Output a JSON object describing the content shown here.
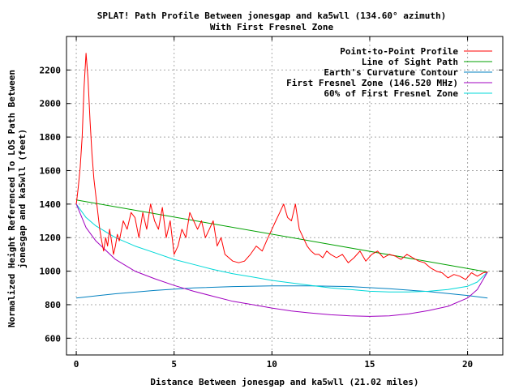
{
  "chart_data": {
    "type": "line",
    "title": "SPLAT! Path Profile Between jonesgap and ka5wll (134.60° azimuth)",
    "subtitle": "With First Fresnel Zone",
    "xlabel": "Distance Between jonesgap and ka5wll (21.02 miles)",
    "ylabel_lines": [
      "Normalized Height Referenced To LOS Path Between",
      "jonesgap and ka5wll (feet)"
    ],
    "xlim": [
      -0.5,
      21.8
    ],
    "ylim": [
      500,
      2400
    ],
    "xticks": [
      0,
      5,
      10,
      15,
      20
    ],
    "yticks": [
      600,
      800,
      1000,
      1200,
      1400,
      1600,
      1800,
      2000,
      2200
    ],
    "grid": true,
    "legend_position": "top-right",
    "series": [
      {
        "name": "Point-to-Point Profile",
        "color": "#ff0000",
        "x": [
          0,
          0.1,
          0.2,
          0.3,
          0.4,
          0.5,
          0.6,
          0.7,
          0.8,
          0.9,
          1.0,
          1.1,
          1.2,
          1.3,
          1.4,
          1.5,
          1.6,
          1.7,
          1.8,
          1.9,
          2.0,
          2.1,
          2.2,
          2.4,
          2.6,
          2.8,
          3.0,
          3.2,
          3.4,
          3.6,
          3.8,
          4.0,
          4.2,
          4.4,
          4.6,
          4.8,
          5.0,
          5.2,
          5.4,
          5.6,
          5.8,
          6.0,
          6.2,
          6.4,
          6.6,
          6.8,
          7.0,
          7.2,
          7.4,
          7.6,
          7.8,
          8.0,
          8.3,
          8.6,
          8.9,
          9.2,
          9.5,
          9.8,
          10.0,
          10.2,
          10.4,
          10.6,
          10.8,
          11.0,
          11.2,
          11.4,
          11.6,
          11.8,
          12.0,
          12.2,
          12.4,
          12.6,
          12.8,
          13.0,
          13.3,
          13.6,
          13.9,
          14.2,
          14.5,
          14.8,
          15.1,
          15.4,
          15.7,
          16.0,
          16.3,
          16.6,
          16.9,
          17.2,
          17.5,
          17.8,
          18.1,
          18.4,
          18.7,
          19.0,
          19.3,
          19.6,
          19.9,
          20.2,
          20.5,
          20.8,
          21.02
        ],
        "values": [
          1400,
          1500,
          1620,
          1800,
          2100,
          2300,
          2150,
          1900,
          1700,
          1550,
          1450,
          1350,
          1250,
          1180,
          1120,
          1200,
          1150,
          1250,
          1180,
          1100,
          1150,
          1220,
          1180,
          1300,
          1250,
          1350,
          1320,
          1200,
          1350,
          1250,
          1400,
          1300,
          1250,
          1380,
          1200,
          1300,
          1100,
          1150,
          1250,
          1200,
          1350,
          1300,
          1250,
          1300,
          1200,
          1250,
          1300,
          1150,
          1200,
          1100,
          1080,
          1060,
          1050,
          1060,
          1100,
          1150,
          1120,
          1200,
          1250,
          1300,
          1350,
          1400,
          1320,
          1300,
          1400,
          1250,
          1200,
          1150,
          1120,
          1100,
          1100,
          1080,
          1120,
          1100,
          1080,
          1100,
          1050,
          1080,
          1120,
          1060,
          1100,
          1120,
          1080,
          1100,
          1090,
          1070,
          1100,
          1080,
          1060,
          1050,
          1020,
          1000,
          990,
          960,
          980,
          970,
          950,
          990,
          970,
          990,
          995
        ]
      },
      {
        "name": "Line of Sight Path",
        "color": "#00a000",
        "x": [
          0,
          21.02
        ],
        "values": [
          1425,
          995
        ]
      },
      {
        "name": "Earth's Curvature Contour",
        "color": "#0080c0",
        "x": [
          0,
          2,
          4,
          6,
          8,
          10,
          12,
          14,
          16,
          18,
          20,
          21.02
        ],
        "values": [
          840,
          865,
          885,
          900,
          908,
          912,
          912,
          908,
          895,
          878,
          855,
          840
        ]
      },
      {
        "name": "First Fresnel Zone (146.520 MHz)",
        "color": "#a000c0",
        "x": [
          0,
          0.5,
          1,
          2,
          3,
          4,
          5,
          6,
          7,
          8,
          9,
          10,
          11,
          12,
          13,
          14,
          15,
          16,
          17,
          18,
          19,
          20,
          20.5,
          21.02
        ],
        "values": [
          1400,
          1260,
          1180,
          1070,
          1000,
          955,
          915,
          880,
          850,
          820,
          800,
          780,
          762,
          750,
          740,
          733,
          730,
          733,
          745,
          765,
          790,
          840,
          890,
          995
        ]
      },
      {
        "name": "60% of First Fresnel Zone",
        "color": "#00d8d8",
        "x": [
          0,
          0.5,
          1,
          2,
          3,
          4,
          5,
          6,
          7,
          8,
          9,
          10,
          11,
          12,
          13,
          14,
          15,
          16,
          17,
          18,
          19,
          20,
          20.5,
          21.02
        ],
        "values": [
          1400,
          1320,
          1270,
          1200,
          1150,
          1110,
          1070,
          1040,
          1010,
          985,
          965,
          945,
          930,
          915,
          900,
          890,
          880,
          876,
          876,
          880,
          890,
          910,
          935,
          995
        ]
      }
    ]
  }
}
